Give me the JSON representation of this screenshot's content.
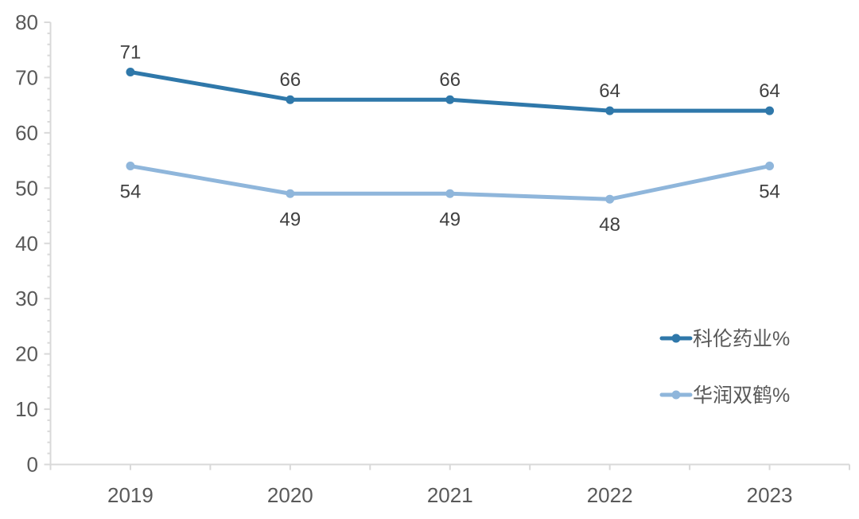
{
  "chart_data": {
    "type": "line",
    "title": "",
    "xlabel": "",
    "ylabel": "",
    "categories": [
      "2019",
      "2020",
      "2021",
      "2022",
      "2023"
    ],
    "series": [
      {
        "name": "科伦药业%",
        "values": [
          71,
          66,
          66,
          64,
          64
        ],
        "color": "#2f78aa",
        "label_position": "above"
      },
      {
        "name": "华润双鹤%",
        "values": [
          54,
          49,
          49,
          48,
          54
        ],
        "color": "#8fb6db",
        "label_position": "below"
      }
    ],
    "ylim": [
      0,
      80
    ],
    "y_major_step": 10,
    "y_minor_step": 2,
    "grid": false,
    "data_labels": true,
    "legend_position": "right-middle",
    "colors": {
      "background": "#ffffff",
      "axis_line": "#d9d9d9",
      "tick": "#d9d9d9",
      "axis_label": "#595959",
      "data_label": "#404040",
      "legend_label": "#595959"
    }
  }
}
